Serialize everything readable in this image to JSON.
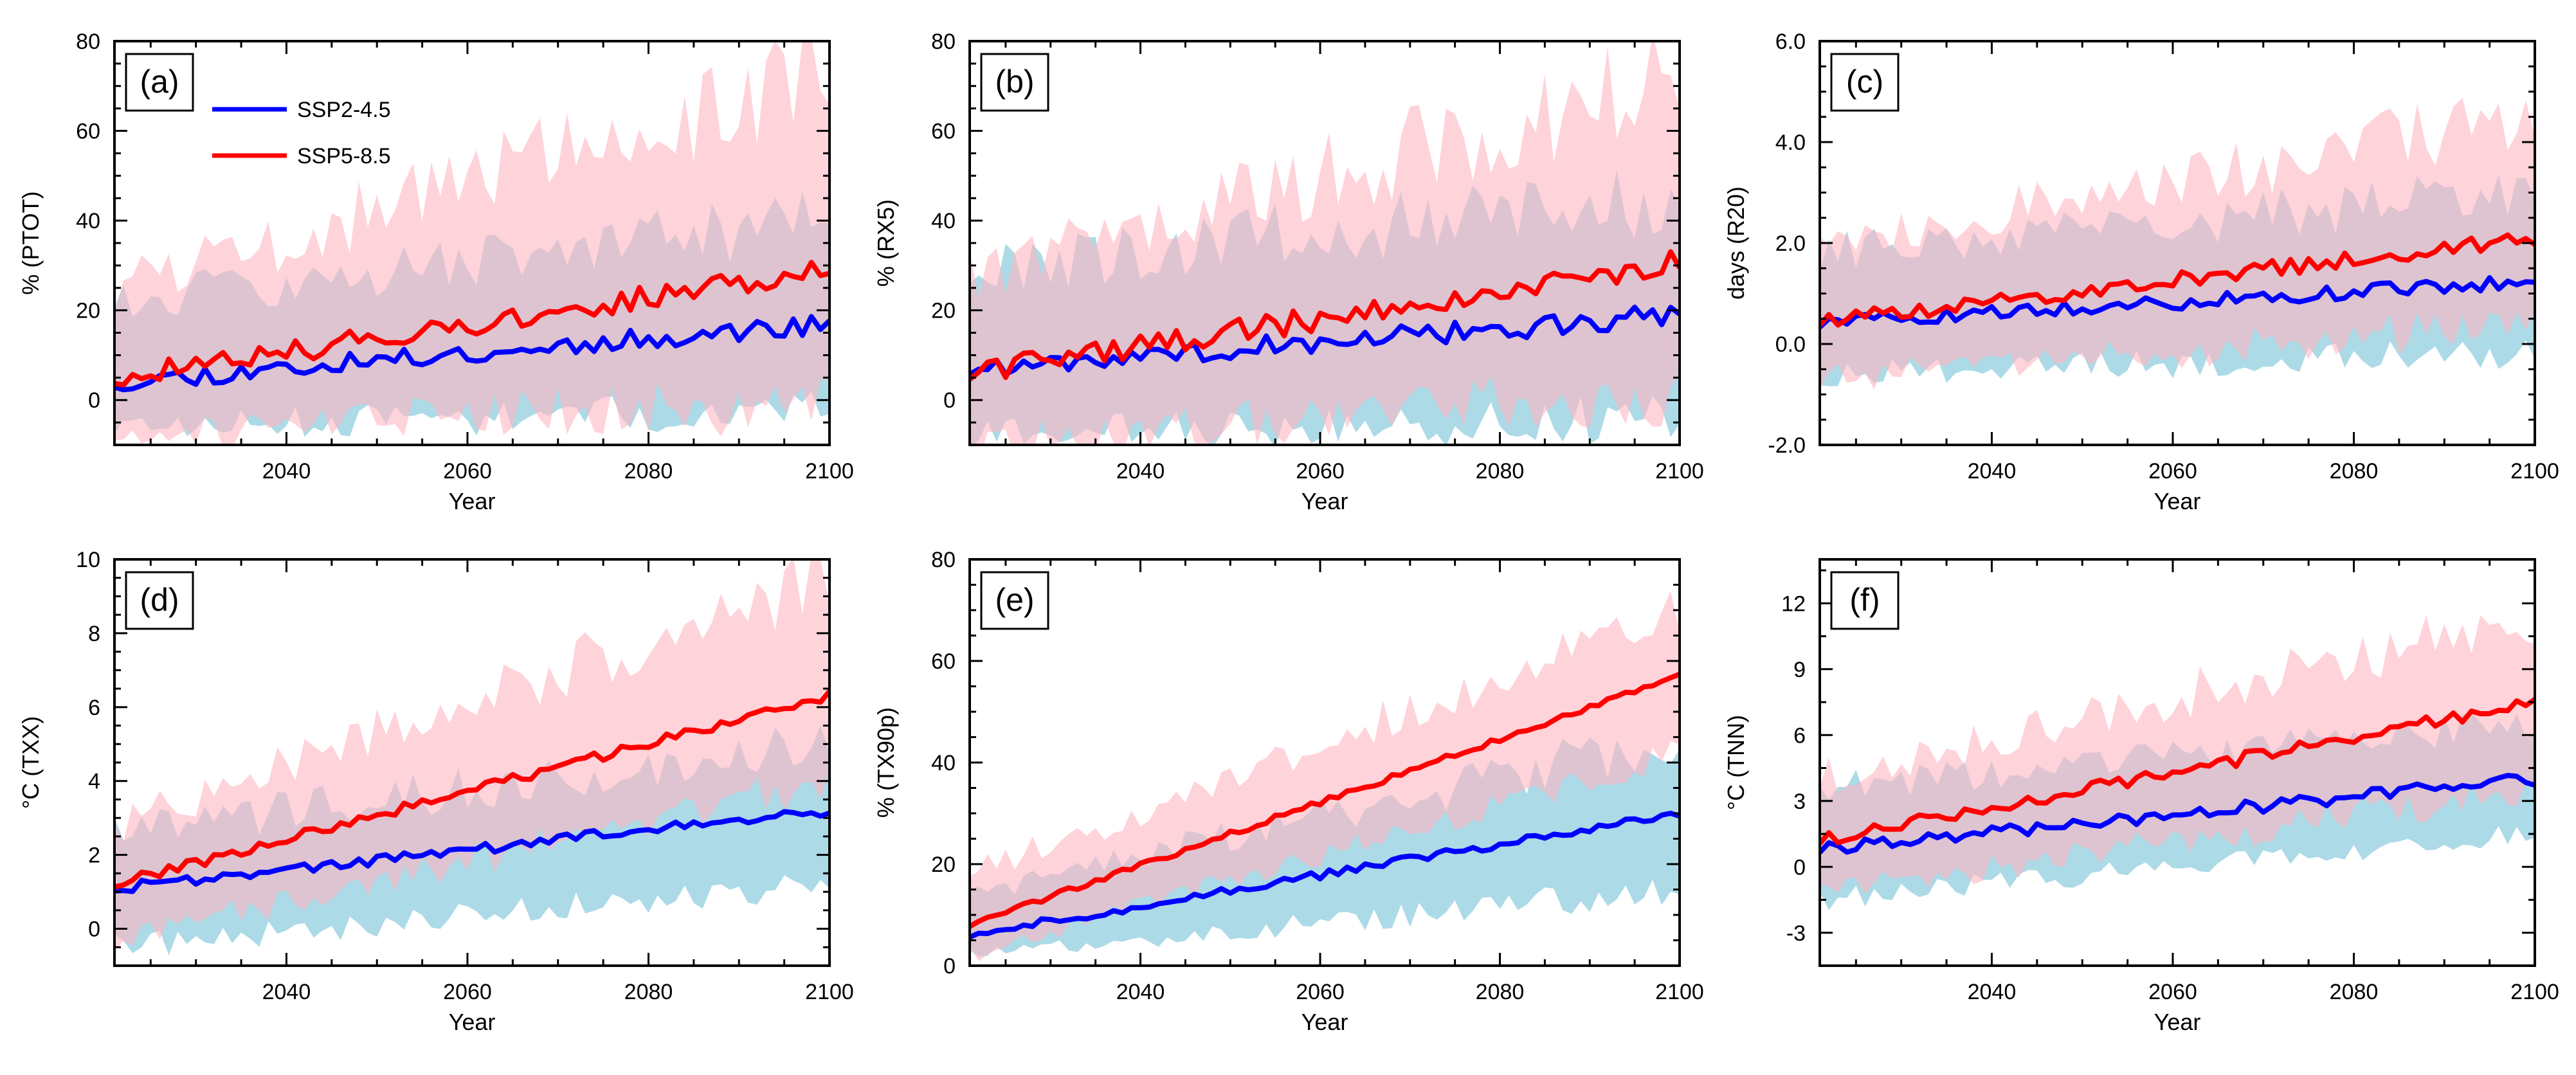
{
  "legend": {
    "items": [
      {
        "name": "SSP2-4.5",
        "color": "#0000ff"
      },
      {
        "name": "SSP5-8.5",
        "color": "#ff0000"
      }
    ]
  },
  "colors": {
    "ssp245_band": "#9fd3e3",
    "ssp585_band": "#ffb6c1"
  },
  "chart_data": [
    {
      "type": "line",
      "panel_label": "(a)",
      "title": "",
      "xlabel": "Year",
      "ylabel": "% (PTOT)",
      "xlim": [
        2021,
        2100
      ],
      "ylim": [
        -10,
        80
      ],
      "xticks": [
        2040,
        2060,
        2080,
        2100
      ],
      "yticks": [
        0,
        20,
        40,
        60,
        80
      ],
      "ytick_labels": [
        "0",
        "20",
        "40",
        "60",
        "80"
      ],
      "minor_y": 5,
      "legend_position": "top-left",
      "series": [
        {
          "name": "SSP2-4.5",
          "start": 4,
          "end": 17,
          "noise": 2.2,
          "band_low": -6,
          "band_high": 22,
          "band_low_end": -2,
          "band_high_end": 40,
          "seed": 11
        },
        {
          "name": "SSP5-8.5",
          "start": 5,
          "end": 29,
          "noise": 2.5,
          "band_low": -8,
          "band_high": 25,
          "band_low_end": 0,
          "band_high_end": 72,
          "seed": 12
        }
      ]
    },
    {
      "type": "line",
      "panel_label": "(b)",
      "title": "",
      "xlabel": "Year",
      "ylabel": "% (RX5)",
      "xlim": [
        2021,
        2100
      ],
      "ylim": [
        -10,
        80
      ],
      "xticks": [
        2040,
        2060,
        2080,
        2100
      ],
      "yticks": [
        0,
        20,
        40,
        60,
        80
      ],
      "ytick_labels": [
        "0",
        "20",
        "40",
        "60",
        "80"
      ],
      "minor_y": 5,
      "legend_position": "none",
      "series": [
        {
          "name": "SSP2-4.5",
          "start": 7,
          "end": 19,
          "noise": 2.5,
          "band_low": -8,
          "band_high": 30,
          "band_low_end": -4,
          "band_high_end": 45,
          "seed": 21
        },
        {
          "name": "SSP5-8.5",
          "start": 6,
          "end": 31,
          "noise": 2.8,
          "band_low": -10,
          "band_high": 28,
          "band_low_end": 2,
          "band_high_end": 72,
          "seed": 22
        }
      ]
    },
    {
      "type": "line",
      "panel_label": "(c)",
      "title": "",
      "xlabel": "Year",
      "ylabel": "days (R20)",
      "xlim": [
        2021,
        2100
      ],
      "ylim": [
        -2,
        6
      ],
      "xticks": [
        2040,
        2060,
        2080,
        2100
      ],
      "yticks": [
        -2,
        0,
        2,
        4,
        6
      ],
      "ytick_labels": [
        "-2.0",
        "0.0",
        "2.0",
        "4.0",
        "6.0"
      ],
      "minor_y": 0.5,
      "legend_position": "none",
      "series": [
        {
          "name": "SSP2-4.5",
          "start": 0.4,
          "end": 1.25,
          "noise": 0.14,
          "band_low": -0.6,
          "band_high": 1.8,
          "band_low_end": -0.2,
          "band_high_end": 3.0,
          "seed": 31
        },
        {
          "name": "SSP5-8.5",
          "start": 0.45,
          "end": 2.1,
          "noise": 0.16,
          "band_low": -0.7,
          "band_high": 1.9,
          "band_low_end": 0.4,
          "band_high_end": 4.6,
          "seed": 32
        }
      ]
    },
    {
      "type": "line",
      "panel_label": "(d)",
      "title": "",
      "xlabel": "Year",
      "ylabel": "°C (TXX)",
      "xlim": [
        2021,
        2100
      ],
      "ylim": [
        -1,
        10
      ],
      "xticks": [
        2040,
        2060,
        2080,
        2100
      ],
      "yticks": [
        0,
        2,
        4,
        6,
        8,
        10
      ],
      "ytick_labels": [
        "0",
        "2",
        "4",
        "6",
        "8",
        "10"
      ],
      "minor_y": 0.5,
      "legend_position": "none",
      "series": [
        {
          "name": "SSP2-4.5",
          "start": 1.1,
          "end": 3.2,
          "noise": 0.15,
          "band_low": -0.5,
          "band_high": 2.6,
          "band_low_end": 1.2,
          "band_high_end": 5.0,
          "seed": 41
        },
        {
          "name": "SSP5-8.5",
          "start": 1.2,
          "end": 6.3,
          "noise": 0.14,
          "band_low": -0.3,
          "band_high": 2.8,
          "band_low_end": 4.0,
          "band_high_end": 9.5,
          "seed": 42
        }
      ]
    },
    {
      "type": "line",
      "panel_label": "(e)",
      "title": "",
      "xlabel": "Year",
      "ylabel": "% (TX90p)",
      "xlim": [
        2021,
        2100
      ],
      "ylim": [
        0,
        80
      ],
      "xticks": [
        2040,
        2060,
        2080,
        2100
      ],
      "yticks": [
        0,
        20,
        40,
        60,
        80
      ],
      "ytick_labels": [
        "0",
        "20",
        "40",
        "60",
        "80"
      ],
      "minor_y": 5,
      "legend_position": "none",
      "series": [
        {
          "name": "SSP2-4.5",
          "start": 6,
          "end": 30,
          "noise": 0.8,
          "band_low": 2,
          "band_high": 14,
          "band_low_end": 15,
          "band_high_end": 45,
          "seed": 51
        },
        {
          "name": "SSP5-8.5",
          "start": 8,
          "end": 57,
          "noise": 0.6,
          "band_low": 2,
          "band_high": 18,
          "band_low_end": 42,
          "band_high_end": 70,
          "seed": 52
        }
      ]
    },
    {
      "type": "line",
      "panel_label": "(f)",
      "title": "",
      "xlabel": "Year",
      "ylabel": "°C (TNN)",
      "xlim": [
        2021,
        2100
      ],
      "ylim": [
        -4.5,
        14
      ],
      "xticks": [
        2040,
        2060,
        2080,
        2100
      ],
      "yticks": [
        -3,
        0,
        3,
        6,
        9,
        12
      ],
      "ytick_labels": [
        "-3",
        "0",
        "3",
        "6",
        "9",
        "12"
      ],
      "minor_y": 1.5,
      "legend_position": "none",
      "series": [
        {
          "name": "SSP2-4.5",
          "start": 0.8,
          "end": 4.0,
          "noise": 0.3,
          "band_low": -1.5,
          "band_high": 3.5,
          "band_low_end": 1.5,
          "band_high_end": 6.5,
          "seed": 61
        },
        {
          "name": "SSP5-8.5",
          "start": 1.2,
          "end": 7.5,
          "noise": 0.3,
          "band_low": -1.2,
          "band_high": 4.0,
          "band_low_end": 3.5,
          "band_high_end": 11.5,
          "seed": 62
        }
      ]
    }
  ]
}
